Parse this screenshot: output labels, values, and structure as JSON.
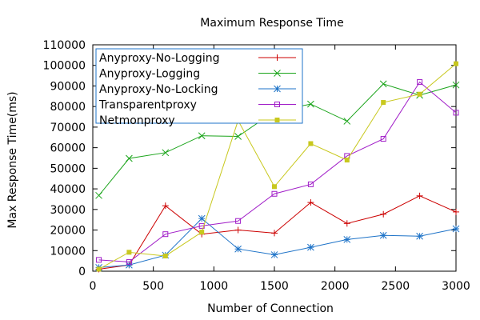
{
  "chart_data": {
    "type": "line",
    "title": "Maximum Response Time",
    "xlabel": "Number of Connection",
    "ylabel": "Max Response Time(ms)",
    "xlim": [
      0,
      3000
    ],
    "ylim": [
      0,
      110000
    ],
    "xticks": [
      0,
      500,
      1000,
      1500,
      2000,
      2500,
      3000
    ],
    "yticks": [
      0,
      10000,
      20000,
      30000,
      40000,
      50000,
      60000,
      70000,
      80000,
      90000,
      100000,
      110000
    ],
    "grid": false,
    "legend_position": "top-left",
    "x": [
      50,
      300,
      600,
      900,
      1200,
      1500,
      1800,
      2100,
      2400,
      2700,
      3000
    ],
    "series": [
      {
        "name": "Anyproxy-No-Logging",
        "color": "#cc0000",
        "marker": "plus",
        "values": [
          1000,
          3000,
          31800,
          18000,
          20000,
          18500,
          33400,
          23200,
          27700,
          36600,
          28800
        ]
      },
      {
        "name": "Anyproxy-Logging",
        "color": "#1aa41a",
        "marker": "cross",
        "values": [
          36800,
          54800,
          57600,
          65800,
          65500,
          77600,
          81200,
          72900,
          91000,
          85500,
          90500
        ]
      },
      {
        "name": "Anyproxy-No-Locking",
        "color": "#1e73c8",
        "marker": "star",
        "values": [
          1800,
          3000,
          7800,
          25600,
          10800,
          8000,
          11600,
          15400,
          17400,
          17000,
          20600
        ]
      },
      {
        "name": "Transparentproxy",
        "color": "#a11ec8",
        "marker": "square",
        "values": [
          5500,
          4500,
          18000,
          22000,
          24400,
          37600,
          42200,
          56000,
          64300,
          91900,
          77000
        ]
      },
      {
        "name": "Netmonproxy",
        "color": "#c8c81e",
        "marker": "filled-square",
        "values": [
          1000,
          9200,
          7400,
          19000,
          73200,
          41100,
          62000,
          54000,
          82000,
          86000,
          100800
        ]
      }
    ]
  }
}
